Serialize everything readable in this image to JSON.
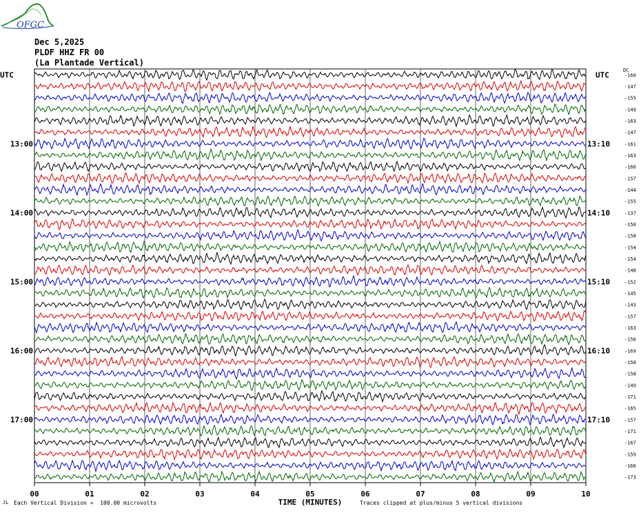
{
  "header": {
    "logo_text": "OFGC",
    "date": "Dec 5,2025",
    "station": "PLDF HHZ FR 00",
    "location": "(La Plantade Vertical)"
  },
  "footer": {
    "corner_mark": "JL",
    "scale_note": "Each Vertical Division =  100.00 microvolts",
    "clip_note": "Traces clipped at plus/minus 5 vertical divisions"
  },
  "chart_data": {
    "type": "line",
    "title": "",
    "xlabel": "TIME (MINUTES)",
    "ylabel": "",
    "xlim": [
      0,
      10
    ],
    "x_ticks": [
      "00",
      "01",
      "02",
      "03",
      "04",
      "05",
      "06",
      "07",
      "08",
      "09",
      "10"
    ],
    "left_axis_title": "UTC",
    "right_axis_title": "UTC",
    "dc_header": "DC",
    "trace_count": 36,
    "trace_colors": [
      "#000000",
      "#dd0000",
      "#0000cc",
      "#006600"
    ],
    "left_hour_labels": [
      {
        "row": 6,
        "label": "13:00"
      },
      {
        "row": 12,
        "label": "14:00"
      },
      {
        "row": 18,
        "label": "15:00"
      },
      {
        "row": 24,
        "label": "16:00"
      },
      {
        "row": 30,
        "label": "17:00"
      }
    ],
    "right_hour_labels": [
      {
        "row": 6,
        "label": "13:10"
      },
      {
        "row": 12,
        "label": "14:10"
      },
      {
        "row": 18,
        "label": "15:10"
      },
      {
        "row": 24,
        "label": "16:10"
      },
      {
        "row": 30,
        "label": "17:10"
      }
    ],
    "dc_offsets": [
      "-160",
      "-147",
      "-155",
      "-149",
      "-163",
      "-147",
      "-161",
      "-163",
      "-166",
      "-157",
      "-144",
      "-155",
      "-137",
      "-150",
      "-158",
      "-154",
      "-154",
      "-148",
      "-152",
      "-145",
      "-143",
      "-157",
      "-163",
      "-156",
      "-169",
      "-158",
      "-158",
      "-149",
      "-171",
      "-165",
      "-157",
      "-171",
      "-167",
      "-159",
      "-166",
      "-173"
    ]
  }
}
